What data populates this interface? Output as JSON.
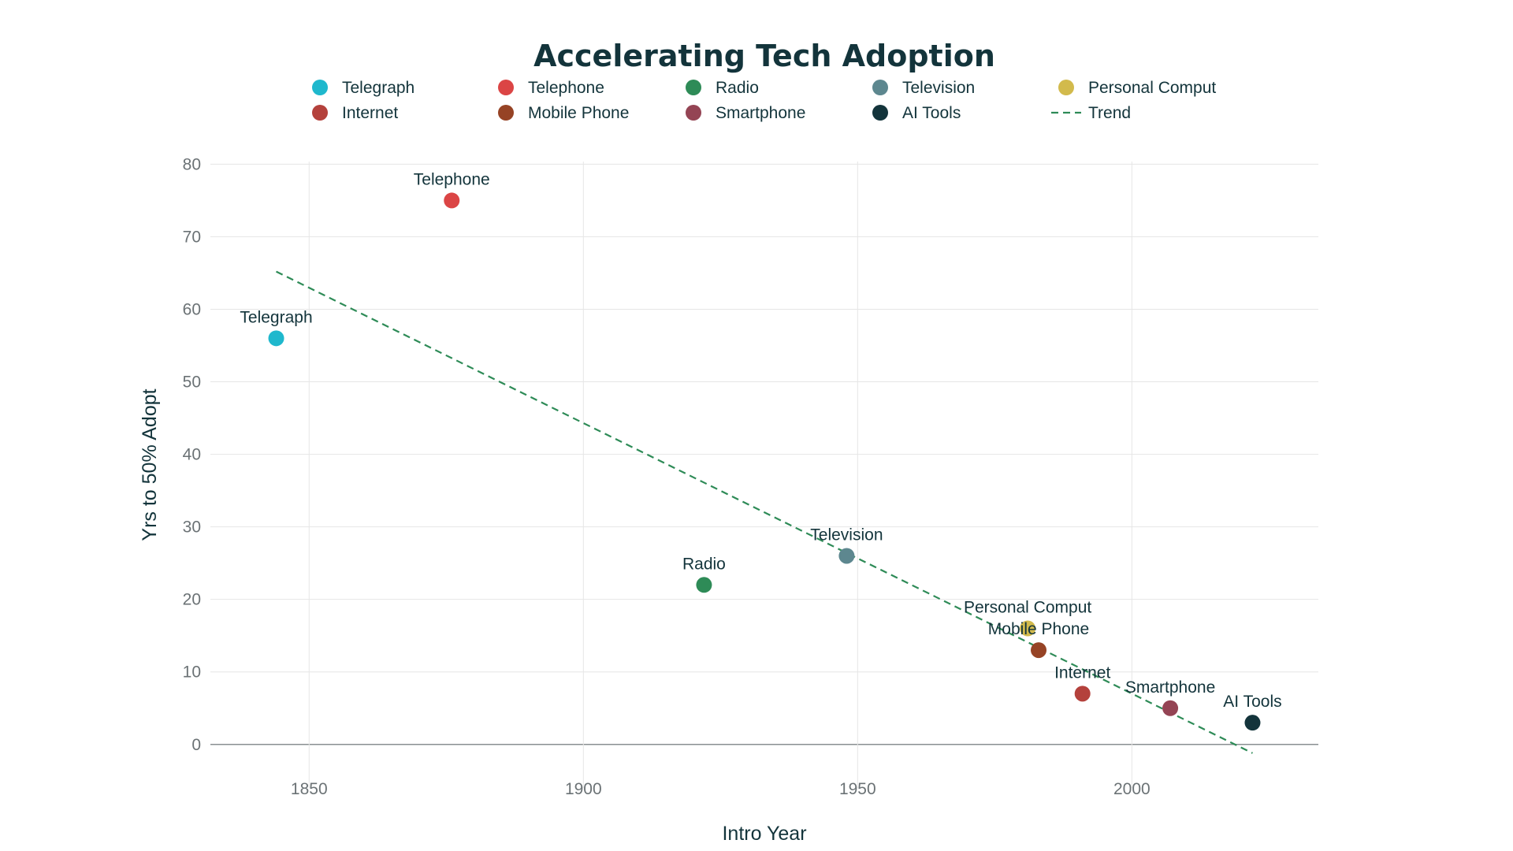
{
  "chart_data": {
    "type": "scatter",
    "title": "Accelerating Tech Adoption",
    "xlabel": "Intro Year",
    "ylabel": "Yrs to 50% Adopt",
    "xlim": [
      1832,
      2034
    ],
    "ylim": [
      -6,
      82
    ],
    "xticks": [
      1850,
      1900,
      1950,
      2000
    ],
    "yticks": [
      0,
      10,
      20,
      30,
      40,
      50,
      60,
      70,
      80
    ],
    "grid": true,
    "legend_position": "top",
    "series": [
      {
        "name": "Telegraph",
        "x": 1844,
        "y": 56,
        "color": "#1fb8cd"
      },
      {
        "name": "Telephone",
        "x": 1876,
        "y": 75,
        "color": "#db4545"
      },
      {
        "name": "Radio",
        "x": 1922,
        "y": 22,
        "color": "#2e8b57"
      },
      {
        "name": "Television",
        "x": 1948,
        "y": 26,
        "color": "#5d878f"
      },
      {
        "name": "Personal Comput",
        "x": 1981,
        "y": 16,
        "color": "#d2ba4c"
      },
      {
        "name": "Internet",
        "x": 1991,
        "y": 7,
        "color": "#b4413c"
      },
      {
        "name": "Mobile Phone",
        "x": 1983,
        "y": 13,
        "color": "#964325"
      },
      {
        "name": "Smartphone",
        "x": 2007,
        "y": 5,
        "color": "#944454"
      },
      {
        "name": "AI Tools",
        "x": 2022,
        "y": 3,
        "color": "#13343b"
      }
    ],
    "trend": {
      "name": "Trend",
      "x": [
        1844,
        2022
      ],
      "y": [
        65.2,
        -1.2
      ],
      "color": "#2e8b57",
      "style": "dashed"
    }
  }
}
